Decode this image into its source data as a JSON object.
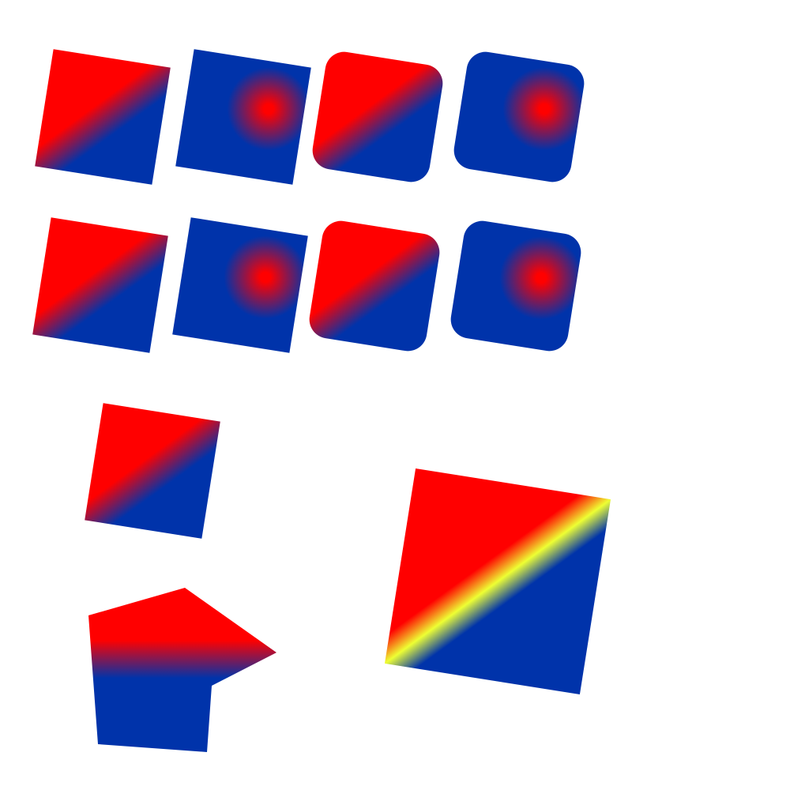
{
  "colors": {
    "background": "#ffffff",
    "red": "#ff0000",
    "blue": "#0033aa",
    "yellow": "#eeff33"
  },
  "shapes": [
    {
      "id": "row1-square-linear",
      "kind": "square",
      "fill": "linear"
    },
    {
      "id": "row1-square-radial",
      "kind": "square",
      "fill": "radial"
    },
    {
      "id": "row1-rounded-square-linear",
      "kind": "rounded-square",
      "fill": "linear"
    },
    {
      "id": "row1-rounded-square-radial",
      "kind": "rounded-square",
      "fill": "radial"
    },
    {
      "id": "row2-square-linear",
      "kind": "square",
      "fill": "linear"
    },
    {
      "id": "row2-square-radial",
      "kind": "square",
      "fill": "radial"
    },
    {
      "id": "row2-rounded-square-linear",
      "kind": "rounded-square",
      "fill": "linear"
    },
    {
      "id": "row2-rounded-square-radial",
      "kind": "rounded-square",
      "fill": "radial"
    },
    {
      "id": "small-square-linear",
      "kind": "square",
      "fill": "linear"
    },
    {
      "id": "pentagon-vertical-gradient",
      "kind": "pentagon",
      "fill": "vertical"
    },
    {
      "id": "large-square-tricolor",
      "kind": "square",
      "fill": "tricolor"
    }
  ]
}
